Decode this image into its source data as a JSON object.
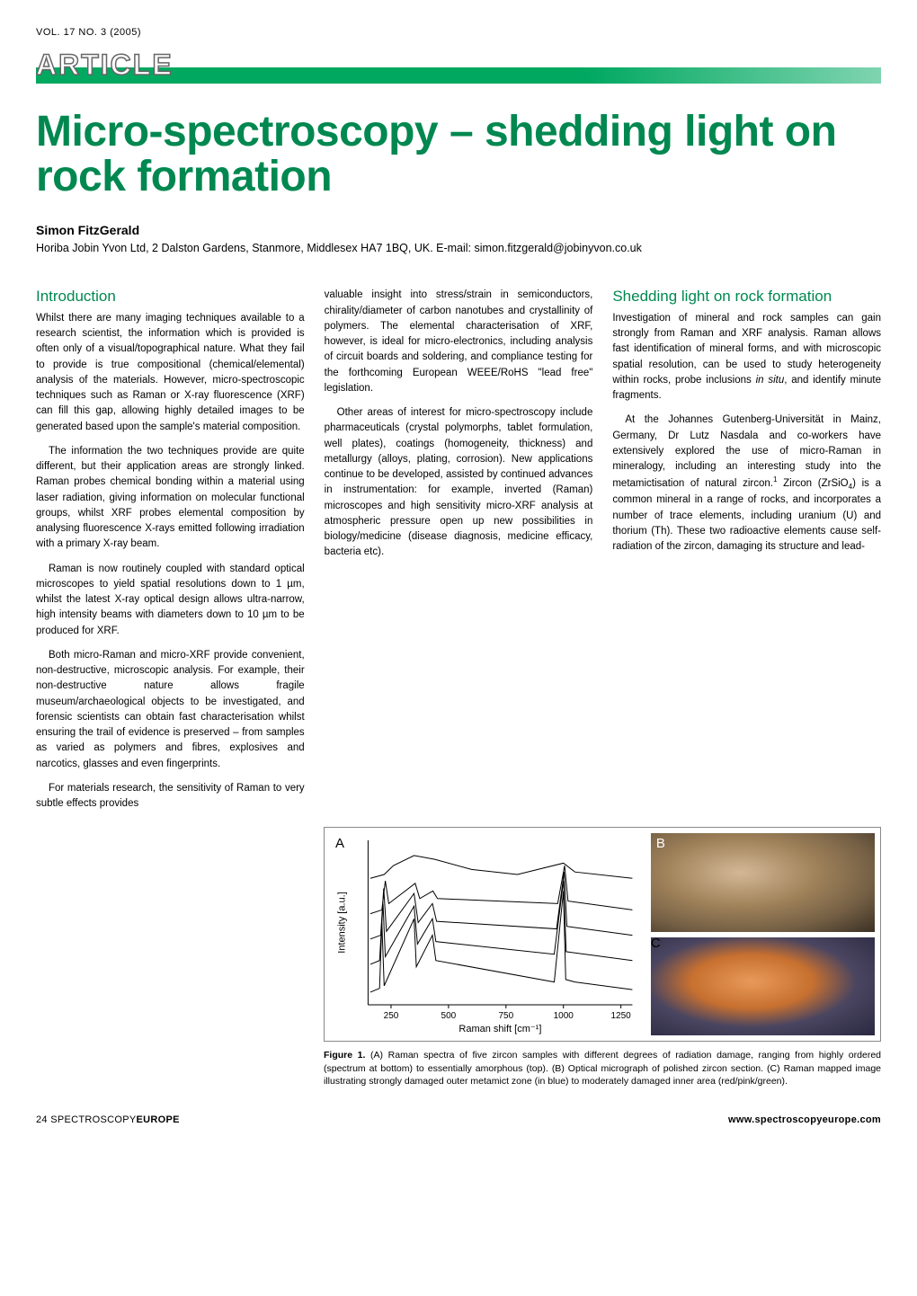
{
  "header": {
    "vol_line": "VOL. 17 NO. 3 (2005)",
    "badge": "ARTICLE"
  },
  "title": "Micro-spectroscopy – shedding light on rock formation",
  "author": {
    "name": "Simon FitzGerald",
    "affiliation": "Horiba Jobin Yvon Ltd, 2 Dalston Gardens, Stanmore, Middlesex HA7 1BQ, UK. E-mail: simon.fitzgerald@jobinyvon.co.uk"
  },
  "sections": {
    "intro_heading": "Introduction",
    "intro_paras": [
      "Whilst there are many imaging techniques available to a research scientist, the information which is provided is often only of a visual/topographical nature. What they fail to provide is true compositional (chemical/elemental) analysis of the materials. However, micro-spectroscopic techniques such as Raman or X-ray fluorescence (XRF) can fill this gap, allowing highly detailed images to be generated based upon the sample's material composition.",
      "The information the two techniques provide are quite different, but their application areas are strongly linked. Raman probes chemical bonding within a material using laser radiation, giving information on molecular functional groups, whilst XRF probes elemental composition by analysing fluorescence X-rays emitted following irradiation with a primary X-ray beam.",
      "Raman is now routinely coupled with standard optical microscopes to yield spatial resolutions down to 1 µm, whilst the latest X-ray optical design allows ultra-narrow, high intensity beams with diameters down to 10 µm to be produced for XRF.",
      "Both micro-Raman and micro-XRF provide convenient, non-destructive, microscopic analysis. For example, their non-destructive nature allows fragile museum/archaeological objects to be investigated, and forensic scientists can obtain fast characterisation whilst ensuring the trail of evidence is preserved – from samples as varied as polymers and fibres, explosives and narcotics, glasses and even fingerprints.",
      "For materials research, the sensitivity of Raman to very subtle effects provides"
    ],
    "col2_paras": [
      "valuable insight into stress/strain in semiconductors, chirality/diameter of carbon nanotubes and crystallinity of polymers. The elemental characterisation of XRF, however, is ideal for micro-electronics, including analysis of circuit boards and soldering, and compliance testing for the forthcoming European WEEE/RoHS \"lead free\" legislation.",
      "Other areas of interest for micro-spectroscopy include pharmaceuticals (crystal polymorphs, tablet formulation, well plates), coatings (homogeneity, thickness) and metallurgy (alloys, plating, corrosion). New applications continue to be developed, assisted by continued advances in instrumentation: for example, inverted (Raman) microscopes and high sensitivity micro-XRF analysis at atmospheric pressure open up new possibilities in biology/medicine (disease diagnosis, medicine efficacy, bacteria etc)."
    ],
    "shedding_heading": "Shedding light on rock formation",
    "col3_paras_pre": "Investigation of mineral and rock samples can gain strongly from Raman and XRF analysis. Raman allows fast identification of mineral forms, and with microscopic spatial resolution, can be used to study heterogeneity within rocks, probe inclusions ",
    "col3_in_situ": "in situ",
    "col3_paras_post": ", and identify minute fragments.",
    "col3_para2_pre": "At the Johannes Gutenberg-Universität in Mainz, Germany, Dr Lutz Nasdala and co-workers have extensively explored the use of micro-Raman in mineralogy, including an interesting study into the metamictisation of natural zircon.",
    "col3_para2_post_pre": " Zircon (ZrSiO",
    "col3_para2_post_post": ") is a common mineral in a range of rocks, and incorporates a number of trace elements, including uranium (U) and thorium (Th). These two radioactive elements cause self-radiation of the zircon, damaging its structure and lead-"
  },
  "figure": {
    "panel_a": "A",
    "panel_b": "B",
    "panel_c": "C",
    "y_label": "Intensity [a.u.]",
    "x_label": "Raman shift  [cm⁻¹]",
    "x_ticks": [
      "250",
      "500",
      "750",
      "1000",
      "1250"
    ],
    "caption_label": "Figure 1.",
    "caption_text": " (A) Raman spectra of five zircon samples with different degrees of radiation damage, ranging from highly ordered (spectrum at bottom) to essentially amorphous (top). (B) Optical micrograph of polished zircon section. (C) Raman mapped image illustrating strongly damaged outer metamict zone (in blue) to moderately damaged inner area (red/pink/green).",
    "spectra": {
      "xlim": [
        150,
        1300
      ],
      "colors": [
        "#000000",
        "#000000",
        "#000000",
        "#000000",
        "#000000"
      ],
      "line_width": 1,
      "curves": [
        [
          [
            160,
            10
          ],
          [
            200,
            13
          ],
          [
            210,
            65
          ],
          [
            220,
            15
          ],
          [
            350,
            68
          ],
          [
            360,
            30
          ],
          [
            430,
            55
          ],
          [
            445,
            35
          ],
          [
            960,
            18
          ],
          [
            1000,
            90
          ],
          [
            1010,
            20
          ],
          [
            1050,
            18
          ],
          [
            1300,
            12
          ]
        ],
        [
          [
            160,
            32
          ],
          [
            200,
            35
          ],
          [
            215,
            80
          ],
          [
            225,
            38
          ],
          [
            350,
            78
          ],
          [
            365,
            48
          ],
          [
            430,
            68
          ],
          [
            445,
            50
          ],
          [
            960,
            40
          ],
          [
            1000,
            98
          ],
          [
            1012,
            42
          ],
          [
            1300,
            35
          ]
        ],
        [
          [
            160,
            52
          ],
          [
            205,
            55
          ],
          [
            218,
            92
          ],
          [
            230,
            58
          ],
          [
            350,
            88
          ],
          [
            368,
            65
          ],
          [
            430,
            80
          ],
          [
            448,
            66
          ],
          [
            970,
            60
          ],
          [
            1003,
            105
          ],
          [
            1015,
            62
          ],
          [
            1300,
            55
          ]
        ],
        [
          [
            160,
            72
          ],
          [
            210,
            75
          ],
          [
            225,
            98
          ],
          [
            240,
            80
          ],
          [
            355,
            96
          ],
          [
            375,
            84
          ],
          [
            432,
            90
          ],
          [
            452,
            84
          ],
          [
            975,
            80
          ],
          [
            1005,
            110
          ],
          [
            1020,
            82
          ],
          [
            1300,
            75
          ]
        ],
        [
          [
            160,
            100
          ],
          [
            220,
            103
          ],
          [
            260,
            110
          ],
          [
            350,
            118
          ],
          [
            440,
            115
          ],
          [
            600,
            107
          ],
          [
            800,
            103
          ],
          [
            1000,
            112
          ],
          [
            1050,
            105
          ],
          [
            1300,
            100
          ]
        ]
      ]
    }
  },
  "footer": {
    "left_page": "24 ",
    "left_mag": "SPECTROSCOPY",
    "left_eur": "EUROPE",
    "right": "www.spectroscopyeurope.com"
  },
  "colors": {
    "accent": "#008850",
    "bar_gradient_start": "#00a860",
    "bar_gradient_end": "#7fd4b0",
    "text": "#000000",
    "background": "#ffffff"
  }
}
